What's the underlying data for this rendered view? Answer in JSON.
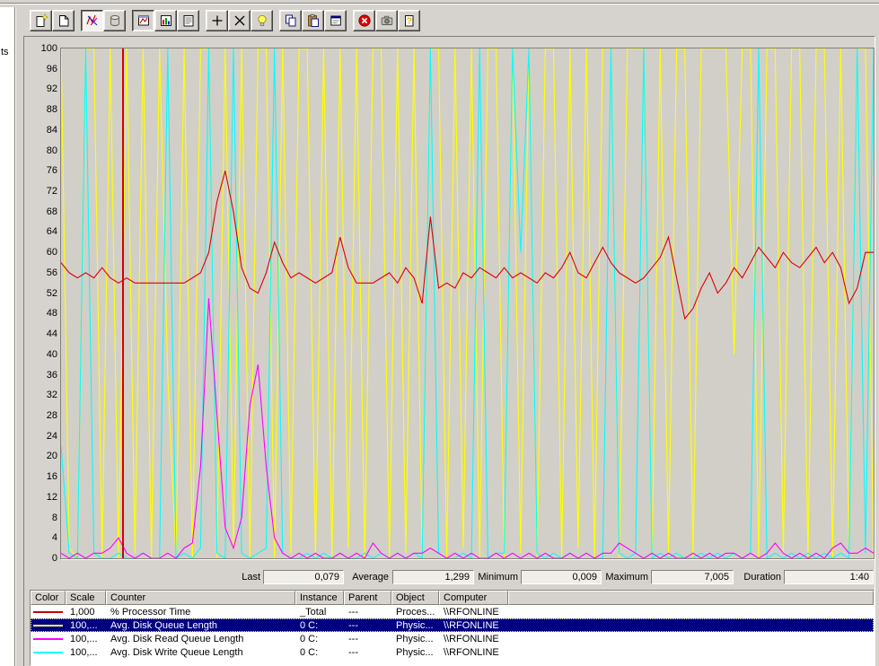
{
  "left_pane": {
    "partial_text": "ts"
  },
  "toolbar": {
    "buttons": [
      {
        "name": "new-counter-set"
      },
      {
        "name": "clear-display"
      },
      {
        "name": "view-current-activity",
        "pressed": true
      },
      {
        "name": "view-log-data"
      },
      {
        "name": "view-graph",
        "pressed": true
      },
      {
        "name": "view-histogram"
      },
      {
        "name": "view-report"
      },
      {
        "name": "add-counter"
      },
      {
        "name": "delete-counter"
      },
      {
        "name": "highlight"
      },
      {
        "name": "copy-properties"
      },
      {
        "name": "paste-counter-list"
      },
      {
        "name": "properties"
      },
      {
        "name": "freeze-display"
      },
      {
        "name": "update-data"
      },
      {
        "name": "help"
      }
    ]
  },
  "chart_data": {
    "type": "line",
    "ylim": [
      0,
      100
    ],
    "y_ticks": [
      100,
      96,
      92,
      88,
      84,
      80,
      76,
      72,
      68,
      64,
      60,
      56,
      52,
      48,
      44,
      40,
      36,
      32,
      28,
      24,
      20,
      16,
      12,
      8,
      4,
      0
    ],
    "samples": 100,
    "time_bar_index": 7.4,
    "grid": false,
    "plot_background": "#D2CFC8",
    "series": [
      {
        "name": "% Processor Time",
        "color": "#DE0000",
        "values": [
          58,
          56,
          55,
          56,
          55,
          57,
          55,
          54,
          55,
          54,
          54,
          54,
          54,
          54,
          54,
          54,
          55,
          56,
          60,
          70,
          76,
          68,
          57,
          53,
          52,
          56,
          62,
          58,
          55,
          56,
          55,
          54,
          55,
          56,
          63,
          57,
          54,
          54,
          54,
          55,
          56,
          54,
          57,
          55,
          50,
          67,
          53,
          54,
          53,
          56,
          55,
          57,
          56,
          55,
          57,
          55,
          56,
          55,
          54,
          56,
          55,
          57,
          60,
          56,
          55,
          58,
          61,
          58,
          56,
          55,
          54,
          55,
          57,
          59,
          63,
          55,
          47,
          49,
          53,
          56,
          52,
          54,
          57,
          55,
          58,
          61,
          59,
          57,
          60,
          58,
          57,
          59,
          61,
          58,
          60,
          57,
          50,
          53,
          60,
          60
        ]
      },
      {
        "name": "Avg. Disk Queue Length",
        "color": "#FFFF00",
        "values": [
          100,
          2,
          0,
          100,
          100,
          0,
          100,
          0,
          100,
          1,
          100,
          0,
          100,
          36,
          0,
          100,
          0,
          100,
          100,
          0,
          100,
          2,
          100,
          0,
          100,
          100,
          0,
          100,
          1,
          100,
          100,
          0,
          100,
          0,
          100,
          2,
          100,
          0,
          100,
          100,
          0,
          100,
          1,
          100,
          0,
          100,
          100,
          0,
          100,
          2,
          100,
          0,
          100,
          100,
          0,
          100,
          1,
          100,
          0,
          100,
          100,
          0,
          100,
          2,
          100,
          0,
          100,
          100,
          0,
          100,
          100,
          100,
          0,
          100,
          1,
          100,
          100,
          0,
          100,
          100,
          100,
          100,
          40,
          100,
          100,
          0,
          100,
          100,
          1,
          100,
          100,
          0,
          100,
          100,
          0,
          100,
          2,
          100,
          100,
          0
        ]
      },
      {
        "name": "Avg. Disk Read Queue Length",
        "color": "#FF00FF",
        "values": [
          1,
          0,
          1,
          0,
          1,
          1,
          2,
          4,
          1,
          0,
          1,
          0,
          0,
          1,
          0,
          2,
          3,
          18,
          51,
          28,
          6,
          2,
          8,
          30,
          38,
          18,
          4,
          1,
          0,
          1,
          0,
          1,
          0,
          0,
          1,
          0,
          1,
          0,
          3,
          1,
          0,
          1,
          0,
          1,
          1,
          2,
          1,
          0,
          1,
          0,
          1,
          0,
          0,
          1,
          0,
          1,
          0,
          1,
          0,
          1,
          0,
          0,
          1,
          0,
          1,
          0,
          1,
          1,
          3,
          2,
          1,
          0,
          1,
          0,
          1,
          0,
          0,
          1,
          0,
          1,
          0,
          1,
          1,
          0,
          1,
          0,
          1,
          3,
          1,
          0,
          1,
          0,
          1,
          0,
          2,
          3,
          1,
          1,
          2,
          1
        ]
      },
      {
        "name": "Avg. Disk Write Queue Length",
        "color": "#00FFFF",
        "values": [
          22,
          1,
          0,
          100,
          1,
          0,
          0,
          1,
          0,
          0,
          1,
          0,
          0,
          100,
          0,
          1,
          0,
          2,
          100,
          1,
          0,
          100,
          1,
          0,
          1,
          2,
          100,
          1,
          0,
          0,
          1,
          0,
          1,
          0,
          1,
          0,
          0,
          1,
          0,
          1,
          0,
          1,
          0,
          1,
          0,
          100,
          1,
          0,
          0,
          1,
          0,
          100,
          0,
          1,
          1,
          100,
          60,
          100,
          1,
          0,
          1,
          0,
          1,
          0,
          1,
          0,
          0,
          100,
          1,
          0,
          1,
          100,
          0,
          1,
          0,
          1,
          0,
          0,
          1,
          0,
          1,
          0,
          1,
          0,
          1,
          100,
          0,
          1,
          0,
          1,
          0,
          1,
          0,
          1,
          0,
          1,
          0,
          100,
          1,
          100
        ]
      }
    ]
  },
  "stats": [
    {
      "label": "Last",
      "value": "0,079"
    },
    {
      "label": "Average",
      "value": "1,299"
    },
    {
      "label": "Minimum",
      "value": "0,009"
    },
    {
      "label": "Maximum",
      "value": "7,005"
    },
    {
      "label": "Duration",
      "value": "1:40"
    }
  ],
  "legend": {
    "columns": [
      "Color",
      "Scale",
      "Counter",
      "Instance",
      "Parent",
      "Object",
      "Computer"
    ],
    "rows": [
      {
        "color": "#C00000",
        "scale": "1,000",
        "counter": "% Processor Time",
        "instance": "_Total",
        "parent": "---",
        "object": "Proces...",
        "computer": "\\\\RFONLINE",
        "selected": false
      },
      {
        "color": "#FFFF60",
        "scale": "100,...",
        "counter": "Avg. Disk Queue Length",
        "instance": "0 C:",
        "parent": "---",
        "object": "Physic...",
        "computer": "\\\\RFONLINE",
        "selected": true
      },
      {
        "color": "#FF00FF",
        "scale": "100,...",
        "counter": "Avg. Disk Read Queue Length",
        "instance": "0 C:",
        "parent": "---",
        "object": "Physic...",
        "computer": "\\\\RFONLINE",
        "selected": false
      },
      {
        "color": "#00FFFF",
        "scale": "100,...",
        "counter": "Avg. Disk Write Queue Length",
        "instance": "0 C:",
        "parent": "---",
        "object": "Physic...",
        "computer": "\\\\RFONLINE",
        "selected": false
      }
    ]
  }
}
